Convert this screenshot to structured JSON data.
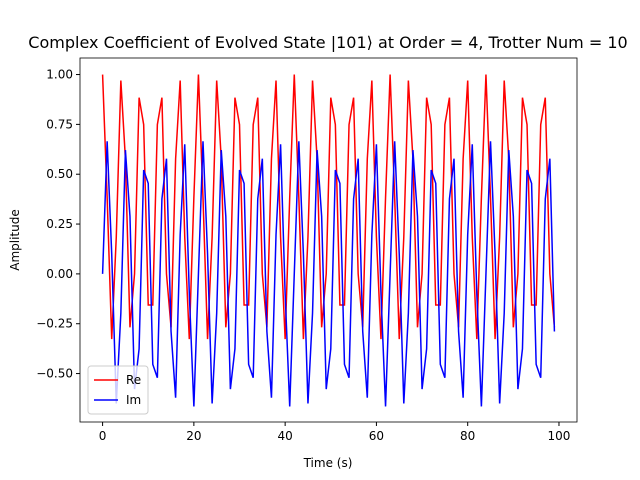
{
  "chart_data": {
    "type": "line",
    "title": "Complex Coefficient of Evolved State |101⟩ at Order = 4, Trotter Num = 10",
    "x_label": "Time (s)",
    "y_label": "Amplitude",
    "x": [
      0,
      1,
      2,
      3,
      4,
      5,
      6,
      7,
      8,
      9,
      10,
      11,
      12,
      13,
      14,
      15,
      16,
      17,
      18,
      19,
      20,
      21,
      22,
      23,
      24,
      25,
      26,
      27,
      28,
      29,
      30,
      31,
      32,
      33,
      34,
      35,
      36,
      37,
      38,
      39,
      40,
      41,
      42,
      43,
      44,
      45,
      46,
      47,
      48,
      49,
      50,
      51,
      52,
      53,
      54,
      55,
      56,
      57,
      58,
      59,
      60,
      61,
      62,
      63,
      64,
      65,
      66,
      67,
      68,
      69,
      70,
      71,
      72,
      73,
      74,
      75,
      76,
      77,
      78,
      79,
      80,
      81,
      82,
      83,
      84,
      85,
      86,
      87,
      88,
      89,
      90,
      91,
      92,
      93,
      94,
      95,
      96,
      97,
      98,
      99
    ],
    "series": [
      {
        "name": "Re",
        "color": "#ff0000",
        "values": [
          1.0,
          0.383,
          -0.327,
          0.185,
          0.97,
          0.577,
          -0.268,
          0.0,
          0.884,
          0.749,
          -0.156,
          -0.156,
          0.749,
          0.884,
          0.0,
          -0.268,
          0.577,
          0.97,
          0.185,
          -0.327,
          0.383,
          1.0,
          0.383,
          -0.327,
          0.185,
          0.97,
          0.577,
          -0.268,
          0.0,
          0.884,
          0.749,
          -0.156,
          -0.156,
          0.749,
          0.884,
          0.0,
          -0.268,
          0.577,
          0.97,
          0.185,
          -0.327,
          0.383,
          1.0,
          0.383,
          -0.327,
          0.185,
          0.97,
          0.577,
          -0.268,
          0.0,
          0.884,
          0.749,
          -0.156,
          -0.156,
          0.749,
          0.884,
          0.0,
          -0.268,
          0.577,
          0.97,
          0.185,
          -0.327,
          0.383,
          1.0,
          0.383,
          -0.327,
          0.185,
          0.97,
          0.577,
          -0.268,
          0.0,
          0.884,
          0.749,
          -0.156,
          -0.156,
          0.749,
          0.884,
          0.0,
          -0.268,
          0.577,
          0.97,
          0.185,
          -0.327,
          0.383,
          1.0,
          0.383,
          -0.327,
          0.185,
          0.97,
          0.577,
          -0.268,
          0.0,
          0.884,
          0.749,
          -0.156,
          -0.156,
          0.749,
          0.884,
          0.0,
          -0.268
        ]
      },
      {
        "name": "Im",
        "color": "#0000ff",
        "values": [
          0.0,
          0.665,
          0.099,
          -0.65,
          -0.197,
          0.621,
          0.289,
          -0.578,
          -0.376,
          0.521,
          0.454,
          -0.454,
          -0.521,
          0.376,
          0.578,
          -0.289,
          -0.621,
          0.197,
          0.65,
          -0.099,
          -0.665,
          0.0,
          0.665,
          0.099,
          -0.65,
          -0.197,
          0.621,
          0.289,
          -0.578,
          -0.376,
          0.521,
          0.454,
          -0.454,
          -0.521,
          0.376,
          0.578,
          -0.289,
          -0.621,
          0.197,
          0.65,
          -0.099,
          -0.665,
          0.0,
          0.665,
          0.099,
          -0.65,
          -0.197,
          0.621,
          0.289,
          -0.578,
          -0.376,
          0.521,
          0.454,
          -0.454,
          -0.521,
          0.376,
          0.578,
          -0.289,
          -0.621,
          0.197,
          0.65,
          -0.099,
          -0.665,
          0.0,
          0.665,
          0.099,
          -0.65,
          -0.197,
          0.621,
          0.289,
          -0.578,
          -0.376,
          0.521,
          0.454,
          -0.454,
          -0.521,
          0.376,
          0.578,
          -0.289,
          -0.621,
          0.197,
          0.65,
          -0.099,
          -0.665,
          0.0,
          0.665,
          0.099,
          -0.65,
          -0.197,
          0.621,
          0.289,
          -0.578,
          -0.376,
          0.521,
          0.454,
          -0.454,
          -0.521,
          0.376,
          0.578,
          -0.289
        ]
      }
    ],
    "xlim": [
      -4.95,
      103.95
    ],
    "ylim": [
      -0.743,
      1.083
    ],
    "xticks": [
      0,
      20,
      40,
      60,
      80,
      100
    ],
    "yticks": [
      {
        "value": -0.5,
        "label": "−0.50"
      },
      {
        "value": -0.25,
        "label": "−0.25"
      },
      {
        "value": 0,
        "label": "0.00"
      },
      {
        "value": 0.25,
        "label": "0.25"
      },
      {
        "value": 0.5,
        "label": "0.50"
      },
      {
        "value": 0.75,
        "label": "0.75"
      },
      {
        "value": 1,
        "label": "1.00"
      }
    ],
    "grid": false,
    "legend": "lower left"
  }
}
